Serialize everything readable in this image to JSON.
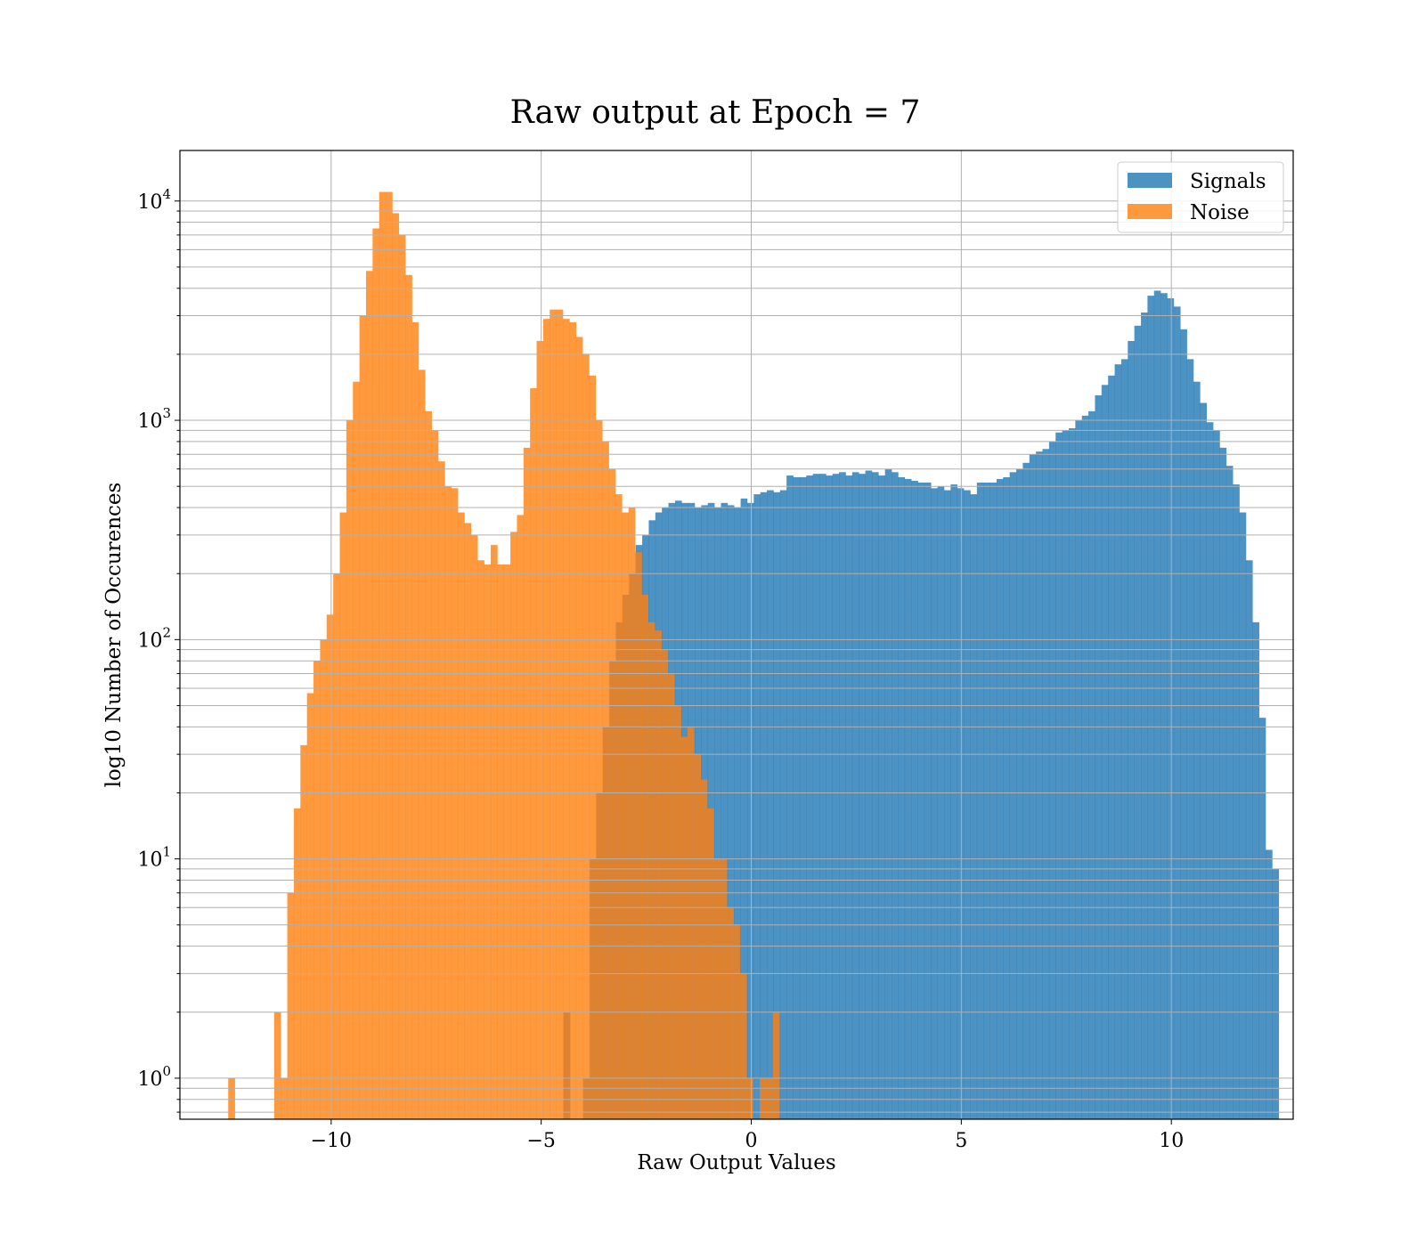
{
  "chart_data": {
    "type": "histogram",
    "title": "Raw output at Epoch = 7",
    "xlabel": "Raw Output Values",
    "ylabel": "log10 Number of Occurences",
    "xlim": [
      -13.6,
      12.9
    ],
    "ylim": [
      0.65,
      17000
    ],
    "yscale": "log",
    "grid": true,
    "legend_position": "top-right",
    "x_ticks": [
      -10,
      -5,
      0,
      5,
      10
    ],
    "x_tick_labels": [
      "−10",
      "−5",
      "0",
      "5",
      "10"
    ],
    "y_ticks": [
      1,
      10,
      100,
      1000,
      10000
    ],
    "y_tick_labels": [
      {
        "base": "10",
        "exp": "0"
      },
      {
        "base": "10",
        "exp": "1"
      },
      {
        "base": "10",
        "exp": "2"
      },
      {
        "base": "10",
        "exp": "3"
      },
      {
        "base": "10",
        "exp": "4"
      }
    ],
    "series": [
      {
        "name": "Signals",
        "color": "#1f77b4",
        "opacity": 0.8,
        "bin_start": -4.47,
        "bin_width": 0.1562,
        "counts": [
          2,
          0,
          0,
          1,
          10,
          20,
          40,
          80,
          120,
          160,
          200,
          270,
          300,
          350,
          380,
          400,
          420,
          430,
          420,
          420,
          400,
          410,
          420,
          400,
          420,
          410,
          400,
          440,
          420,
          460,
          470,
          480,
          470,
          480,
          560,
          550,
          550,
          560,
          570,
          570,
          560,
          570,
          580,
          560,
          580,
          570,
          590,
          580,
          560,
          600,
          580,
          550,
          540,
          530,
          520,
          520,
          490,
          500,
          480,
          510,
          490,
          480,
          460,
          520,
          520,
          520,
          540,
          550,
          580,
          600,
          640,
          700,
          720,
          740,
          800,
          880,
          900,
          920,
          1000,
          1050,
          1100,
          1300,
          1450,
          1600,
          1800,
          1900,
          2300,
          2700,
          3100,
          3700,
          3900,
          3800,
          3600,
          3300,
          2600,
          1900,
          1500,
          1200,
          980,
          900,
          750,
          620,
          510,
          380,
          230,
          120,
          44,
          11,
          9
        ]
      },
      {
        "name": "Noise",
        "color": "#ff7f0e",
        "opacity": 0.8,
        "bin_start": -12.45,
        "bin_width": 0.1562,
        "counts": [
          1,
          0,
          0,
          0,
          0,
          0,
          0,
          2,
          1,
          7,
          17,
          33,
          57,
          80,
          100,
          130,
          200,
          380,
          1000,
          1500,
          3000,
          4800,
          7500,
          11000,
          11000,
          8800,
          7000,
          4600,
          2800,
          1700,
          1100,
          900,
          650,
          500,
          490,
          380,
          340,
          300,
          230,
          220,
          270,
          220,
          220,
          310,
          370,
          750,
          1400,
          2300,
          2900,
          3200,
          3200,
          2900,
          2800,
          2400,
          2000,
          1600,
          1000,
          800,
          600,
          460,
          380,
          400,
          250,
          160,
          120,
          110,
          90,
          70,
          50,
          36,
          40,
          30,
          23,
          17,
          10,
          10,
          6,
          5,
          3,
          1,
          0,
          1,
          1,
          2
        ]
      }
    ]
  }
}
